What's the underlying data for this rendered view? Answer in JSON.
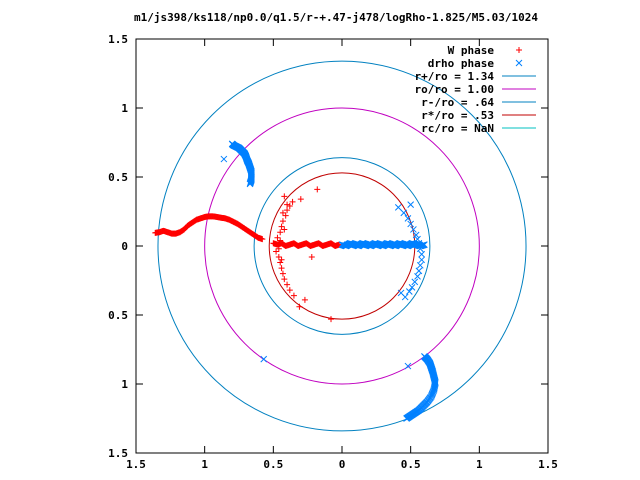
{
  "chart_data": {
    "type": "scatter",
    "title": "m1/js398/ks118/np0.0/q1.5/r-+.47-j478/logRho-1.825/M5.03/1024",
    "xlabel": "",
    "ylabel": "",
    "xlim": [
      -1.5,
      1.5
    ],
    "ylim": [
      -1.5,
      1.5
    ],
    "x_ticks": [
      -1.5,
      -1,
      -0.5,
      0,
      0.5,
      1,
      1.5
    ],
    "y_ticks": [
      1.5,
      1,
      0.5,
      0,
      -0.5,
      -1,
      -1.5
    ],
    "x_tick_labels": [
      "1.5",
      "1",
      "0.5",
      "0",
      "0.5",
      "1",
      "1.5"
    ],
    "y_tick_labels": [
      "1.5",
      "1",
      "0.5",
      "0",
      "0.5",
      "1",
      "1.5"
    ],
    "grid": false,
    "legend_position": "top-right",
    "series": [
      {
        "name": "W phase",
        "kind": "points",
        "marker": "+",
        "color": "#ff0000",
        "segments": [
          {
            "x": [
              -1.36,
              -1.33,
              -1.3,
              -1.27,
              -1.24,
              -1.21,
              -1.18,
              -1.15,
              -1.12,
              -1.09,
              -1.06,
              -1.03,
              -1.0,
              -0.97,
              -0.94,
              -0.91,
              -0.88,
              -0.85,
              -0.82,
              -0.79,
              -0.76,
              -0.73,
              -0.7,
              -0.67,
              -0.64,
              -0.61,
              -0.58
            ],
            "y": [
              0.095,
              0.1,
              0.11,
              0.1,
              0.09,
              0.09,
              0.1,
              0.12,
              0.15,
              0.17,
              0.19,
              0.2,
              0.21,
              0.215,
              0.215,
              0.21,
              0.205,
              0.2,
              0.19,
              0.175,
              0.16,
              0.14,
              0.12,
              0.1,
              0.08,
              0.06,
              0.05
            ]
          },
          {
            "x": [
              -0.5,
              -0.47,
              -0.44,
              -0.41,
              -0.38,
              -0.35,
              -0.32,
              -0.29,
              -0.26,
              -0.23,
              -0.2,
              -0.17,
              -0.14,
              -0.11,
              -0.08,
              -0.05,
              -0.02
            ],
            "y": [
              0.02,
              0.01,
              0.02,
              0.0,
              0.01,
              0.02,
              0.0,
              0.01,
              0.02,
              0.0,
              0.01,
              0.02,
              0.0,
              0.01,
              0.02,
              0.0,
              0.01
            ]
          }
        ],
        "scatter": {
          "x": [
            -0.48,
            -0.46,
            -0.45,
            -0.44,
            -0.43,
            -0.42,
            -0.4,
            -0.38,
            -0.35,
            -0.31,
            -0.27,
            -0.22,
            -0.47,
            -0.45,
            -0.44,
            -0.43,
            -0.41,
            -0.4,
            -0.38,
            -0.45,
            -0.46,
            -0.44,
            -0.42,
            -0.3,
            -0.18,
            -0.08,
            -0.42,
            -0.4,
            -0.36,
            -0.43
          ],
          "y": [
            -0.04,
            -0.08,
            -0.12,
            -0.16,
            -0.2,
            -0.24,
            -0.28,
            -0.32,
            -0.36,
            -0.44,
            -0.39,
            -0.08,
            0.06,
            0.1,
            0.14,
            0.18,
            0.22,
            0.26,
            0.29,
            0.04,
            -0.02,
            -0.1,
            0.12,
            0.34,
            0.41,
            -0.53,
            0.36,
            0.3,
            0.32,
            0.24
          ]
        }
      },
      {
        "name": "drho phase",
        "kind": "points",
        "marker": "x",
        "color": "#0080ff",
        "segments": [
          {
            "x": [
              -0.8,
              -0.79,
              -0.77,
              -0.75,
              -0.73,
              -0.71,
              -0.7,
              -0.69,
              -0.68,
              -0.67,
              -0.66,
              -0.66,
              -0.66,
              -0.67
            ],
            "y": [
              0.74,
              0.73,
              0.72,
              0.71,
              0.69,
              0.67,
              0.65,
              0.62,
              0.6,
              0.57,
              0.54,
              0.51,
              0.48,
              0.45
            ]
          },
          {
            "x": [
              0.6,
              0.62,
              0.64,
              0.65,
              0.66,
              0.67,
              0.68,
              0.67,
              0.65,
              0.62,
              0.59,
              0.56,
              0.53,
              0.5,
              0.47
            ],
            "y": [
              -0.8,
              -0.82,
              -0.85,
              -0.88,
              -0.91,
              -0.95,
              -0.99,
              -1.04,
              -1.09,
              -1.13,
              -1.16,
              -1.19,
              -1.21,
              -1.23,
              -1.25
            ]
          },
          {
            "x": [
              0.0,
              0.03,
              0.06,
              0.09,
              0.12,
              0.15,
              0.18,
              0.21,
              0.24,
              0.27,
              0.3,
              0.33,
              0.36,
              0.39,
              0.42,
              0.45,
              0.48,
              0.51,
              0.54,
              0.57,
              0.6
            ],
            "y": [
              0.01,
              0.0,
              0.02,
              0.01,
              0.0,
              0.02,
              0.01,
              0.0,
              0.02,
              0.01,
              0.0,
              0.02,
              0.01,
              0.0,
              0.02,
              0.01,
              0.0,
              0.02,
              0.01,
              0.0,
              0.01
            ]
          }
        ],
        "scatter": {
          "x": [
            -0.86,
            -0.57,
            0.41,
            0.45,
            0.48,
            0.5,
            0.52,
            0.54,
            0.55,
            0.56,
            0.57,
            0.58,
            0.58,
            0.57,
            0.56,
            0.55,
            0.53,
            0.51,
            0.49,
            0.46,
            0.43,
            0.5,
            0.48
          ],
          "y": [
            0.63,
            -0.82,
            0.28,
            0.24,
            0.2,
            0.16,
            0.12,
            0.08,
            0.05,
            0.02,
            -0.02,
            -0.06,
            -0.1,
            -0.14,
            -0.18,
            -0.22,
            -0.26,
            -0.3,
            -0.33,
            -0.37,
            -0.34,
            0.3,
            -0.87
          ]
        }
      },
      {
        "name": "r+/ro = 1.34",
        "kind": "circle",
        "radius": 1.34,
        "color": "#0080c0"
      },
      {
        "name": "ro/ro = 1.00",
        "kind": "circle",
        "radius": 1.0,
        "color": "#c000c0"
      },
      {
        "name": "r-/ro = .64",
        "kind": "circle",
        "radius": 0.64,
        "color": "#0080c0"
      },
      {
        "name": "r*/ro = .53",
        "kind": "circle",
        "radius": 0.53,
        "color": "#c00000"
      },
      {
        "name": "rc/ro = NaN",
        "kind": "circle",
        "radius": null,
        "color": "#00c0c0"
      }
    ]
  }
}
